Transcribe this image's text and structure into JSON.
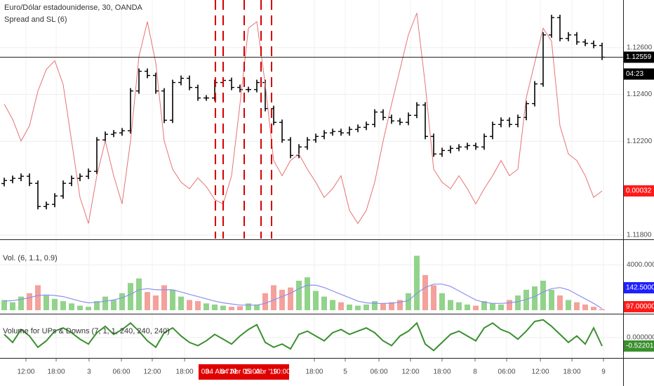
{
  "chart_data": [
    {
      "type": "ohlc",
      "title": "Euro/Dólar estadounidense, 30, OANDA",
      "color": "#000000",
      "open": [
        1.1202,
        1.12033,
        1.12042,
        1.12051,
        1.12021,
        1.11922,
        1.11931,
        1.11967,
        1.12021,
        1.12042,
        1.12051,
        1.12072,
        1.12206,
        1.1223,
        1.12236,
        1.12245,
        1.12415,
        1.12499,
        1.12481,
        1.12415,
        1.1229,
        1.12451,
        1.12469,
        1.1243,
        1.12385,
        1.12385,
        1.12451,
        1.1246,
        1.1243,
        1.12421,
        1.12421,
        1.12451,
        1.1234,
        1.12281,
        1.12206,
        1.1214,
        1.12176,
        1.12206,
        1.12221,
        1.12236,
        1.12242,
        1.12236,
        1.12251,
        1.1226,
        1.12272,
        1.12325,
        1.12302,
        1.12287,
        1.12281,
        1.12311,
        1.12355,
        1.12221,
        1.12146,
        1.12161,
        1.1217,
        1.12176,
        1.12182,
        1.12176,
        1.12221,
        1.12272,
        1.1229,
        1.12272,
        1.12302,
        1.12361,
        1.12445,
        1.12654,
        1.12728,
        1.12639,
        1.12654,
        1.12624,
        1.12618,
        1.12609
      ],
      "high": [
        1.12045,
        1.12054,
        1.12063,
        1.12063,
        1.12033,
        1.11943,
        1.11979,
        1.12033,
        1.12054,
        1.12063,
        1.12084,
        1.12218,
        1.12242,
        1.12248,
        1.12257,
        1.12427,
        1.12511,
        1.12511,
        1.12493,
        1.12427,
        1.12463,
        1.12481,
        1.12481,
        1.12442,
        1.12397,
        1.12463,
        1.12472,
        1.12472,
        1.12442,
        1.12433,
        1.12463,
        1.12463,
        1.12352,
        1.12293,
        1.12218,
        1.12188,
        1.12218,
        1.12233,
        1.12248,
        1.12254,
        1.12254,
        1.12263,
        1.12272,
        1.12284,
        1.12337,
        1.12337,
        1.12314,
        1.12299,
        1.12323,
        1.12367,
        1.12367,
        1.12233,
        1.12173,
        1.12182,
        1.12188,
        1.12194,
        1.12194,
        1.12233,
        1.12284,
        1.12302,
        1.12302,
        1.12314,
        1.12373,
        1.12457,
        1.12666,
        1.1274,
        1.1274,
        1.12666,
        1.12666,
        1.12636,
        1.1263,
        1.12621
      ],
      "low": [
        1.12008,
        1.12021,
        1.1203,
        1.12009,
        1.1191,
        1.1191,
        1.11919,
        1.11955,
        1.12009,
        1.1203,
        1.12039,
        1.1206,
        1.12194,
        1.12218,
        1.12224,
        1.12233,
        1.12403,
        1.12469,
        1.12403,
        1.12278,
        1.12278,
        1.12439,
        1.12418,
        1.12373,
        1.12373,
        1.12373,
        1.12439,
        1.12418,
        1.12409,
        1.12409,
        1.12409,
        1.12328,
        1.12269,
        1.12194,
        1.12128,
        1.12128,
        1.12164,
        1.12194,
        1.12209,
        1.12224,
        1.12224,
        1.12224,
        1.12239,
        1.12248,
        1.1226,
        1.1229,
        1.12275,
        1.12269,
        1.12269,
        1.12299,
        1.12209,
        1.12134,
        1.12134,
        1.12149,
        1.12158,
        1.12164,
        1.12164,
        1.12164,
        1.12209,
        1.1226,
        1.1226,
        1.1226,
        1.1229,
        1.12349,
        1.12433,
        1.12642,
        1.12627,
        1.12627,
        1.12612,
        1.12606,
        1.12597,
        1.12547
      ],
      "close": [
        1.12033,
        1.12042,
        1.12051,
        1.12021,
        1.11922,
        1.11931,
        1.11967,
        1.12021,
        1.12042,
        1.12051,
        1.12072,
        1.12206,
        1.1223,
        1.12236,
        1.12245,
        1.12415,
        1.12499,
        1.12481,
        1.12415,
        1.1229,
        1.12451,
        1.12469,
        1.1243,
        1.12385,
        1.12385,
        1.12451,
        1.1246,
        1.1243,
        1.12421,
        1.12421,
        1.12451,
        1.1234,
        1.12281,
        1.12206,
        1.1214,
        1.12176,
        1.12206,
        1.12221,
        1.12236,
        1.12242,
        1.12236,
        1.12251,
        1.1226,
        1.12272,
        1.12325,
        1.12302,
        1.12287,
        1.12281,
        1.12311,
        1.12355,
        1.12221,
        1.12146,
        1.12161,
        1.1217,
        1.12176,
        1.12182,
        1.12176,
        1.12221,
        1.12272,
        1.1229,
        1.12272,
        1.12302,
        1.12361,
        1.12445,
        1.12654,
        1.12728,
        1.12639,
        1.12654,
        1.12624,
        1.12618,
        1.12609,
        1.12559
      ],
      "last_value_label": "1.12559",
      "countdown": "04:23",
      "series": [
        {
          "name": "Spread and SL (6)",
          "color": "#e57373",
          "axis": "y2",
          "values": [
            0.00072,
            0.00065,
            0.00055,
            0.00062,
            0.00078,
            0.00088,
            0.00092,
            0.00081,
            0.00055,
            0.00029,
            0.00017,
            0.00039,
            0.00055,
            0.00039,
            0.00026,
            0.00055,
            0.00094,
            0.0011,
            0.00091,
            0.00055,
            0.00042,
            0.00036,
            0.00033,
            0.00038,
            0.00034,
            0.00028,
            0.00026,
            0.00039,
            0.00072,
            0.00107,
            0.0011,
            0.00081,
            0.00046,
            0.00039,
            0.00046,
            0.00049,
            0.00042,
            0.00036,
            0.00029,
            0.00033,
            0.00039,
            0.00023,
            0.00017,
            0.00023,
            0.00036,
            0.00055,
            0.00072,
            0.00088,
            0.00104,
            0.00114,
            0.00081,
            0.00042,
            0.00036,
            0.00033,
            0.00039,
            0.00033,
            0.00026,
            0.00033,
            0.00039,
            0.00046,
            0.00039,
            0.00042,
            0.00075,
            0.00091,
            0.00107,
            0.00101,
            0.00062,
            0.00049,
            0.00046,
            0.00039,
            0.00029,
            0.00032
          ]
        }
      ],
      "xlim": [
        -0.5,
        73.5
      ],
      "ylim": [
        1.11785,
        1.12803
      ],
      "y2lim": [
        0.0001,
        0.0012
      ],
      "yticks": [
        {
          "value": 1.118,
          "label": "1.11800"
        },
        {
          "value": 1.122,
          "label": "1.12200"
        },
        {
          "value": 1.124,
          "label": "1.12400"
        },
        {
          "value": 1.126,
          "label": "1.12600"
        }
      ],
      "grid": true,
      "markers": [
        25.08,
        26,
        28.5,
        30.5,
        31.75
      ],
      "marker_color": "#d50000"
    },
    {
      "type": "bar",
      "title": "Vol. (6, 1.1, 0.9)",
      "up_color": "#92d38c",
      "down_color": "#f4a19b",
      "values": [
        900,
        700,
        1200,
        1500,
        2200,
        1300,
        1000,
        800,
        600,
        400,
        300,
        800,
        1200,
        900,
        1500,
        2400,
        2800,
        1600,
        1300,
        2200,
        1800,
        1200,
        900,
        800,
        600,
        500,
        400,
        300,
        350,
        600,
        500,
        1500,
        2200,
        1800,
        2000,
        2600,
        2900,
        1700,
        1200,
        900,
        700,
        500,
        400,
        500,
        800,
        600,
        700,
        900,
        1500,
        4800,
        3100,
        2200,
        1500,
        900,
        700,
        500,
        400,
        800,
        600,
        500,
        900,
        1300,
        1800,
        2100,
        2600,
        1800,
        1300,
        900,
        700,
        500,
        300,
        97
      ],
      "last_value_label": "97.00000",
      "ma": {
        "color": "#8c8ff0",
        "last_value_label": "142.50000",
        "values": [
          800,
          850,
          950,
          1100,
          1300,
          1350,
          1300,
          1200,
          1000,
          800,
          650,
          700,
          800,
          900,
          1100,
          1400,
          1800,
          1900,
          1800,
          1800,
          1800,
          1600,
          1400,
          1200,
          1000,
          800,
          650,
          550,
          450,
          450,
          450,
          600,
          900,
          1200,
          1500,
          1900,
          2200,
          2200,
          2000,
          1700,
          1400,
          1100,
          800,
          650,
          600,
          600,
          620,
          700,
          850,
          1500,
          2000,
          2300,
          2300,
          2100,
          1700,
          1300,
          900,
          700,
          600,
          600,
          650,
          750,
          950,
          1200,
          1600,
          1900,
          2000,
          1800,
          1400,
          1000,
          600,
          142.5
        ]
      },
      "xlim": [
        -0.5,
        73.5
      ],
      "ylim": [
        0,
        6000
      ],
      "yticks": [
        {
          "value": 4000,
          "label": "4000.00000"
        }
      ]
    },
    {
      "type": "line",
      "title": "Volume for UPs & Downs (7, 1, 1, 240, 240, 240)",
      "color": "#3a8f2f",
      "values": [
        0.2,
        -0.3,
        0.5,
        0.1,
        -0.6,
        -0.2,
        0.4,
        0.6,
        0.3,
        -0.1,
        -0.4,
        0.3,
        0.7,
        0.2,
        0.5,
        0.9,
        0.4,
        -0.2,
        -0.6,
        0.3,
        0.6,
        0.1,
        -0.3,
        -0.5,
        -0.2,
        0.2,
        -0.1,
        -0.4,
        0.1,
        0.5,
        0.8,
        -0.3,
        -0.6,
        -0.4,
        -0.7,
        0.2,
        0.4,
        0.1,
        -0.2,
        0.3,
        0.5,
        0.2,
        0.4,
        0.6,
        0.3,
        -0.2,
        -0.5,
        0.1,
        0.4,
        0.9,
        -0.4,
        -0.8,
        -0.3,
        0.2,
        0.4,
        0.1,
        -0.2,
        0.6,
        0.9,
        0.5,
        0.3,
        -0.1,
        0.4,
        1.0,
        1.1,
        0.7,
        0.2,
        -0.3,
        0.1,
        -0.4,
        0.6,
        -0.522018
      ],
      "xlim": [
        -0.5,
        73.5
      ],
      "ylim": [
        -1.26,
        1.35
      ],
      "yticks": [
        {
          "value": 0,
          "label": "0.000000"
        }
      ],
      "xticks": [
        {
          "value": 2.58,
          "label": "12:00"
        },
        {
          "value": 6.17,
          "label": "18:00"
        },
        {
          "value": 10.08,
          "label": "3"
        },
        {
          "value": 13.92,
          "label": "06:00"
        },
        {
          "value": 17.58,
          "label": "12:00"
        },
        {
          "value": 21.42,
          "label": "18:00"
        },
        {
          "value": 36.83,
          "label": "18:00"
        },
        {
          "value": 40.5,
          "label": "5"
        },
        {
          "value": 44.5,
          "label": "06:00"
        },
        {
          "value": 48.25,
          "label": "12:00"
        },
        {
          "value": 52,
          "label": "18:00"
        },
        {
          "value": 55.92,
          "label": "8"
        },
        {
          "value": 59.67,
          "label": "06:00"
        },
        {
          "value": 63.67,
          "label": "12:00"
        },
        {
          "value": 67.42,
          "label": "18:00"
        },
        {
          "value": 71.17,
          "label": "9"
        }
      ],
      "highlight_labels": [
        "03.",
        "04 Abr '19",
        "04 Abr '19",
        "05:00",
        "Abr '19",
        "10:00"
      ]
    }
  ]
}
